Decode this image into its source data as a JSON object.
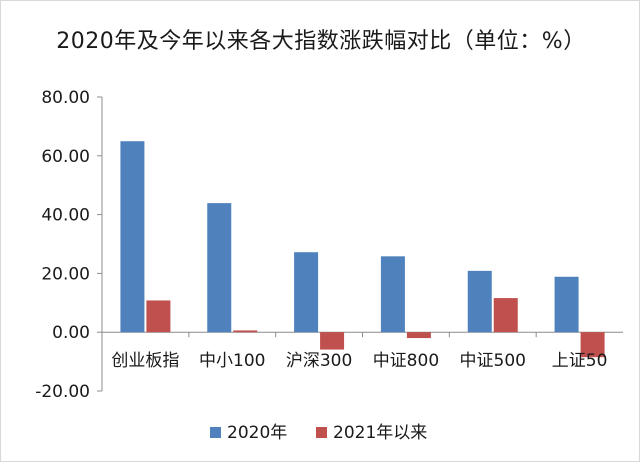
{
  "chart_data": {
    "type": "bar",
    "title": "2020年及今年以来各大指数涨跌幅对比（单位：%）",
    "categories": [
      "创业板指",
      "中小100",
      "沪深300",
      "中证800",
      "中证500",
      "上证50"
    ],
    "series": [
      {
        "name": "2020年",
        "color": "#4f81bd",
        "values": [
          64.96,
          43.91,
          27.21,
          25.81,
          20.87,
          18.85
        ]
      },
      {
        "name": "2021年以来",
        "color": "#c0504d",
        "values": [
          10.8,
          0.6,
          -5.9,
          -2.0,
          11.6,
          -8.5
        ]
      }
    ],
    "y_ticks": [
      "80.00",
      "60.00",
      "40.00",
      "20.00",
      "0.00",
      "-20.00"
    ],
    "ylim": [
      -20,
      80
    ],
    "grid": false,
    "legend_position": "bottom"
  }
}
